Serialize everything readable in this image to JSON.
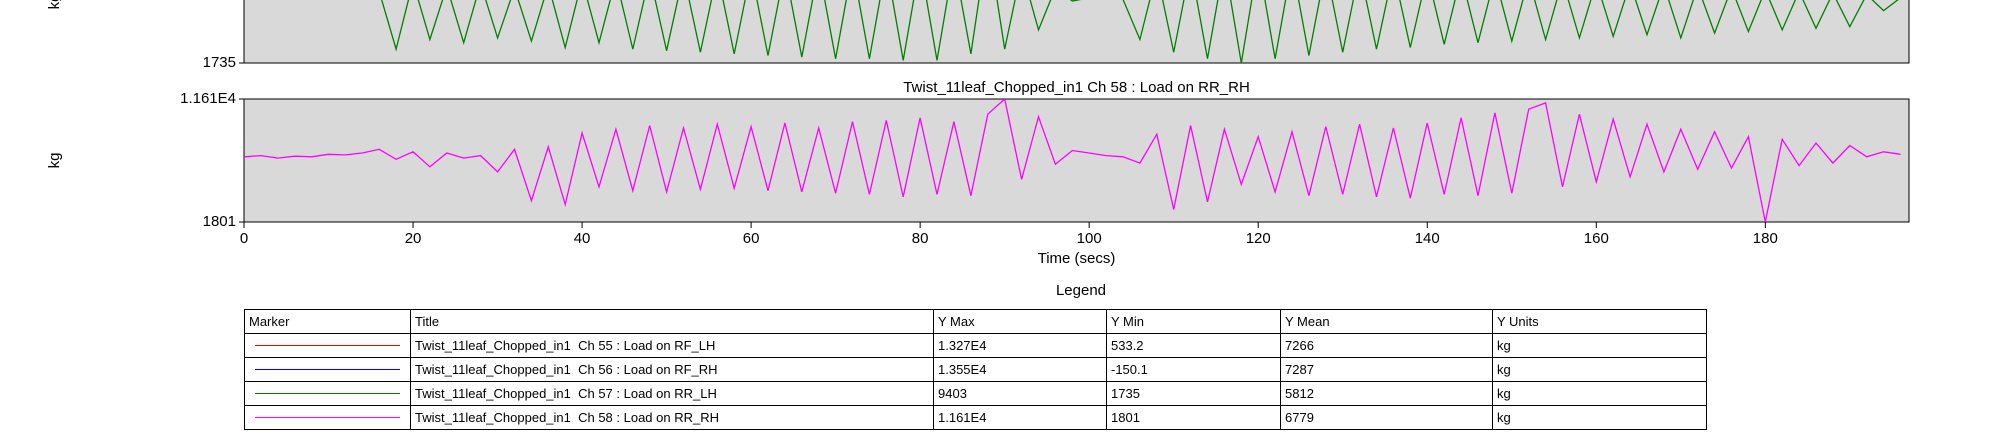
{
  "chart_data": [
    {
      "type": "line",
      "ylabel": "kg",
      "xlim": [
        0,
        197
      ],
      "ylim": [
        1735,
        9403
      ],
      "yticks": [
        1735
      ],
      "x": [
        0,
        2,
        4,
        6,
        8,
        10,
        12,
        14,
        16,
        18,
        20,
        22,
        24,
        26,
        28,
        30,
        32,
        34,
        36,
        38,
        40,
        42,
        44,
        46,
        48,
        50,
        52,
        54,
        56,
        58,
        60,
        62,
        64,
        66,
        68,
        70,
        72,
        74,
        76,
        78,
        80,
        82,
        84,
        86,
        88,
        90,
        92,
        94,
        96,
        98,
        100,
        102,
        104,
        106,
        108,
        110,
        112,
        114,
        116,
        118,
        120,
        122,
        124,
        126,
        128,
        130,
        132,
        134,
        136,
        138,
        140,
        142,
        144,
        146,
        148,
        150,
        152,
        154,
        156,
        158,
        160,
        162,
        164,
        166,
        168,
        170,
        172,
        174,
        176,
        178,
        180,
        182,
        184,
        186,
        188,
        190,
        192,
        194,
        196
      ],
      "series": [
        {
          "color": "#008000",
          "values": [
            5800,
            5900,
            5850,
            5800,
            5900,
            5950,
            5800,
            5900,
            6200,
            2600,
            6800,
            3200,
            6500,
            3000,
            6700,
            3300,
            6400,
            3100,
            6600,
            2700,
            6900,
            3000,
            7000,
            2600,
            7200,
            2500,
            7300,
            2400,
            7400,
            2300,
            7500,
            2200,
            7600,
            2100,
            7700,
            2000,
            7800,
            2000,
            7900,
            1900,
            8000,
            1900,
            8100,
            2300,
            9403,
            2600,
            7600,
            3800,
            6400,
            5600,
            5800,
            5900,
            5700,
            3200,
            7400,
            2400,
            7800,
            2000,
            8000,
            1735,
            8100,
            2000,
            7900,
            2200,
            7700,
            2400,
            7600,
            2600,
            7500,
            2700,
            7300,
            2900,
            7200,
            3000,
            7100,
            3100,
            7000,
            3200,
            6900,
            3300,
            6800,
            3400,
            6700,
            3500,
            6600,
            3300,
            6500,
            3600,
            6400,
            3700,
            6300,
            3800,
            6200,
            3900,
            6100,
            4000,
            6000,
            5000,
            5800
          ]
        }
      ]
    },
    {
      "type": "line",
      "title": "Twist_11leaf_Chopped_in1  Ch 58 : Load on RR_RH",
      "ylabel": "kg",
      "xlabel": "Time (secs)",
      "xlim": [
        0,
        197
      ],
      "xticks": [
        0,
        20,
        40,
        60,
        80,
        100,
        120,
        140,
        160,
        180
      ],
      "ylim": [
        1801,
        11610
      ],
      "yticks": [
        1801,
        {
          "value": 11610,
          "label": "1.161E4"
        }
      ],
      "x": [
        0,
        2,
        4,
        6,
        8,
        10,
        12,
        14,
        16,
        18,
        20,
        22,
        24,
        26,
        28,
        30,
        32,
        34,
        36,
        38,
        40,
        42,
        44,
        46,
        48,
        50,
        52,
        54,
        56,
        58,
        60,
        62,
        64,
        66,
        68,
        70,
        72,
        74,
        76,
        78,
        80,
        82,
        84,
        86,
        88,
        90,
        92,
        94,
        96,
        98,
        100,
        102,
        104,
        106,
        108,
        110,
        112,
        114,
        116,
        118,
        120,
        122,
        124,
        126,
        128,
        130,
        132,
        134,
        136,
        138,
        140,
        142,
        144,
        146,
        148,
        150,
        152,
        154,
        156,
        158,
        160,
        162,
        164,
        166,
        168,
        170,
        172,
        174,
        176,
        178,
        180,
        182,
        184,
        186,
        188,
        190,
        192,
        194,
        196
      ],
      "series": [
        {
          "color": "#ff00ff",
          "values": [
            7000,
            7100,
            6900,
            7050,
            7000,
            7200,
            7150,
            7300,
            7600,
            6800,
            7400,
            6200,
            7300,
            6900,
            7100,
            5800,
            7600,
            3500,
            7800,
            3200,
            8900,
            4600,
            9200,
            4300,
            9500,
            4200,
            9300,
            4400,
            9600,
            4500,
            9400,
            4300,
            9700,
            4200,
            9300,
            4100,
            9800,
            4000,
            9900,
            3800,
            10100,
            4000,
            9800,
            3900,
            10400,
            11610,
            5200,
            10200,
            6400,
            7500,
            7300,
            7100,
            7000,
            6500,
            8800,
            2800,
            9500,
            3400,
            9200,
            4800,
            8600,
            4200,
            9000,
            3900,
            9400,
            4000,
            9600,
            3800,
            9300,
            3700,
            9700,
            4000,
            10100,
            3900,
            10500,
            4100,
            10800,
            11300,
            4600,
            10400,
            5000,
            10000,
            5400,
            9600,
            5800,
            9200,
            6000,
            9000,
            6100,
            8600,
            1801,
            8400,
            6300,
            8100,
            6500,
            7900,
            7000,
            7400,
            7200
          ]
        }
      ]
    }
  ],
  "legend_table": {
    "title": "Legend",
    "columns": [
      "Marker",
      "Title",
      "Y Max",
      "Y Min",
      "Y Mean",
      "Y Units"
    ],
    "marker_colors": [
      "#ff0000",
      "#0000ff",
      "#008000",
      "#ff00ff"
    ],
    "rows": [
      [
        "Twist_11leaf_Chopped_in1  Ch 55 : Load on RF_LH",
        "1.327E4",
        "533.2",
        "7266",
        "kg"
      ],
      [
        "Twist_11leaf_Chopped_in1  Ch 56 : Load on RF_RH",
        "1.355E4",
        "-150.1",
        "7287",
        "kg"
      ],
      [
        "Twist_11leaf_Chopped_in1  Ch 57 : Load on RR_LH",
        "9403",
        "1735",
        "5812",
        "kg"
      ],
      [
        "Twist_11leaf_Chopped_in1  Ch 58 : Load on RR_RH",
        "1.161E4",
        "1801",
        "6779",
        "kg"
      ]
    ]
  }
}
